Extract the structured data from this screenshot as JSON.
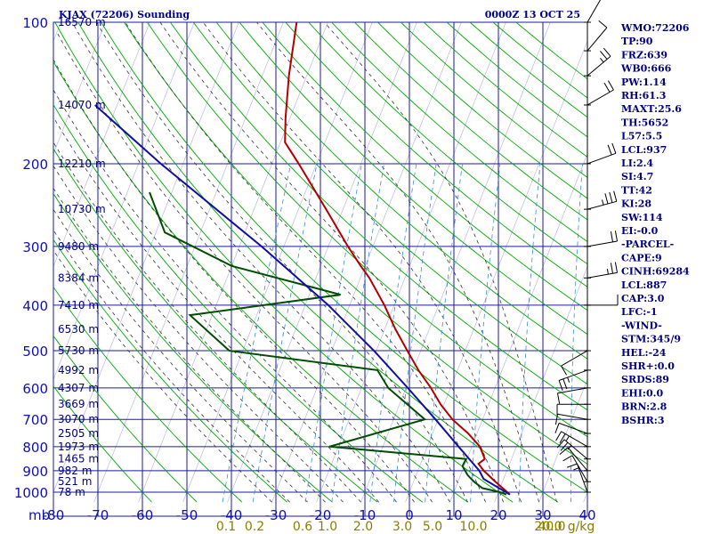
{
  "header": {
    "title": "KJAX (72206) Sounding",
    "timestamp": "0000Z 13 OCT 25"
  },
  "chart_data": {
    "type": "line",
    "title": "KJAX (72206) Sounding",
    "xlabel": "",
    "ylabel": "mb",
    "x_scale": "temperature (°C), skew-T",
    "y_scale": "log pressure (mb)",
    "xlim": [
      -80,
      40
    ],
    "ylim": [
      1000,
      100
    ],
    "pressure_ticks": [
      "100",
      "200",
      "300",
      "400",
      "500",
      "600",
      "700",
      "800",
      "900",
      "1000"
    ],
    "pressure_values": [
      100,
      200,
      300,
      400,
      500,
      600,
      700,
      800,
      900,
      1000
    ],
    "y_axis_unit": "mb",
    "temp_ticks": [
      "-80",
      "-70",
      "-60",
      "-50",
      "-40",
      "-30",
      "-20",
      "-10",
      "0",
      "10",
      "20",
      "30",
      "40"
    ],
    "temp_values": [
      -80,
      -70,
      -60,
      -50,
      -40,
      -30,
      -20,
      -10,
      0,
      10,
      20,
      30,
      40
    ],
    "height_labels": [
      {
        "label": "16570 m",
        "p": 100
      },
      {
        "label": "14070 m",
        "p": 150
      },
      {
        "label": "12210 m",
        "p": 200
      },
      {
        "label": "10730 m",
        "p": 250
      },
      {
        "label": "9480 m",
        "p": 300
      },
      {
        "label": "8384 m",
        "p": 350
      },
      {
        "label": "7410 m",
        "p": 400
      },
      {
        "label": "6530 m",
        "p": 450
      },
      {
        "label": "5730 m",
        "p": 500
      },
      {
        "label": "4992 m",
        "p": 550
      },
      {
        "label": "4307 m",
        "p": 600
      },
      {
        "label": "3669 m",
        "p": 650
      },
      {
        "label": "3070 m",
        "p": 700
      },
      {
        "label": "2505 m",
        "p": 750
      },
      {
        "label": "1973 m",
        "p": 800
      },
      {
        "label": "1465 m",
        "p": 850
      },
      {
        "label": "982 m",
        "p": 900
      },
      {
        "label": "521 m",
        "p": 950
      },
      {
        "label": "78 m",
        "p": 1000
      }
    ],
    "mixing_ratio_labels": [
      "0.1",
      "0.2",
      "0.6",
      "1.0",
      "2.0",
      "3.0",
      "5.0",
      "10.0",
      "20.0",
      "40.0",
      "g/kg"
    ],
    "series": [
      {
        "key": "temperature",
        "color": "#b00000",
        "points": [
          {
            "p": 1012,
            "t": 22.8
          },
          {
            "p": 1000,
            "t": 22.0
          },
          {
            "p": 950,
            "t": 18.4
          },
          {
            "p": 925,
            "t": 16.6
          },
          {
            "p": 900,
            "t": 14.8
          },
          {
            "p": 870,
            "t": 13.0
          },
          {
            "p": 850,
            "t": 14.0
          },
          {
            "p": 800,
            "t": 11.8
          },
          {
            "p": 750,
            "t": 8.0
          },
          {
            "p": 700,
            "t": 3.2
          },
          {
            "p": 650,
            "t": -0.8
          },
          {
            "p": 600,
            "t": -4.4
          },
          {
            "p": 550,
            "t": -8.8
          },
          {
            "p": 500,
            "t": -13.0
          },
          {
            "p": 450,
            "t": -17.6
          },
          {
            "p": 400,
            "t": -22.2
          },
          {
            "p": 350,
            "t": -28.0
          },
          {
            "p": 330,
            "t": -31.0
          },
          {
            "p": 300,
            "t": -35.6
          },
          {
            "p": 250,
            "t": -43.8
          },
          {
            "p": 200,
            "t": -54.0
          },
          {
            "p": 180,
            "t": -59.0
          },
          {
            "p": 160,
            "t": -61.0
          },
          {
            "p": 130,
            "t": -64.0
          },
          {
            "p": 100,
            "t": -67.0
          }
        ]
      },
      {
        "key": "dewpoint",
        "color": "#004d00",
        "points": [
          {
            "p": 1012,
            "t": 22.0
          },
          {
            "p": 1000,
            "t": 20.4
          },
          {
            "p": 980,
            "t": 16.0
          },
          {
            "p": 950,
            "t": 13.6
          },
          {
            "p": 920,
            "t": 11.6
          },
          {
            "p": 900,
            "t": 10.6
          },
          {
            "p": 880,
            "t": 9.6
          },
          {
            "p": 850,
            "t": 9.8
          },
          {
            "p": 800,
            "t": -22.0
          },
          {
            "p": 700,
            "t": -3.0
          },
          {
            "p": 600,
            "t": -14.0
          },
          {
            "p": 550,
            "t": -18.0
          },
          {
            "p": 500,
            "t": -53.0
          },
          {
            "p": 420,
            "t": -65.0
          },
          {
            "p": 380,
            "t": -33.0
          },
          {
            "p": 330,
            "t": -60.0
          },
          {
            "p": 280,
            "t": -78.0
          },
          {
            "p": 230,
            "t": -85.0
          }
        ]
      },
      {
        "key": "parcel",
        "color": "#1010a0",
        "points": [
          {
            "p": 1012,
            "t": 22.8
          },
          {
            "p": 937,
            "t": 15.5
          },
          {
            "p": 900,
            "t": 13.8
          },
          {
            "p": 800,
            "t": 7.0
          },
          {
            "p": 700,
            "t": -0.6
          },
          {
            "p": 600,
            "t": -9.6
          },
          {
            "p": 500,
            "t": -20.5
          },
          {
            "p": 400,
            "t": -34.8
          },
          {
            "p": 300,
            "t": -55.0
          },
          {
            "p": 200,
            "t": -85.0
          },
          {
            "p": 150,
            "t": -105.0
          }
        ]
      }
    ],
    "wind_barbs": [
      {
        "p": 1000,
        "dir": 20,
        "spd": 5
      },
      {
        "p": 950,
        "dir": 30,
        "spd": 10
      },
      {
        "p": 900,
        "dir": 40,
        "spd": 10
      },
      {
        "p": 850,
        "dir": 50,
        "spd": 15
      },
      {
        "p": 800,
        "dir": 60,
        "spd": 15
      },
      {
        "p": 750,
        "dir": 70,
        "spd": 10
      },
      {
        "p": 700,
        "dir": 80,
        "spd": 10
      },
      {
        "p": 650,
        "dir": 90,
        "spd": 10
      },
      {
        "p": 600,
        "dir": 100,
        "spd": 10
      },
      {
        "p": 550,
        "dir": 110,
        "spd": 15
      },
      {
        "p": 500,
        "dir": 120,
        "spd": 10
      },
      {
        "p": 400,
        "dir": 270,
        "spd": 10
      },
      {
        "p": 350,
        "dir": 280,
        "spd": 15
      },
      {
        "p": 300,
        "dir": 280,
        "spd": 20
      },
      {
        "p": 250,
        "dir": 285,
        "spd": 25
      },
      {
        "p": 200,
        "dir": 290,
        "spd": 20
      },
      {
        "p": 150,
        "dir": 300,
        "spd": 20
      },
      {
        "p": 130,
        "dir": 310,
        "spd": 15
      },
      {
        "p": 115,
        "dir": 320,
        "spd": 10
      },
      {
        "p": 100,
        "dir": 330,
        "spd": 10
      }
    ]
  },
  "indices": [
    "WMO:72206",
    "TP:90",
    "FRZ:639",
    "WB0:666",
    "PW:1.14",
    "RH:61.3",
    "MAXT:25.6",
    "TH:5652",
    "L57:5.5",
    "LCL:937",
    "LI:2.4",
    "SI:4.7",
    "TT:42",
    "KI:28",
    "SW:114",
    "EI:-0.0",
    "-PARCEL-",
    "CAPE:9",
    "CINH:69284",
    "LCL:887",
    "CAP:3.0",
    "LFC:-1",
    "-WIND-",
    "STM:345/9",
    "HEL:-24",
    "SHR+:0.0",
    "SRDS:89",
    "EHI:0.0",
    "BRN:2.8",
    "BSHR:3"
  ],
  "colors": {
    "grid_blue": "#1a1aa0",
    "dry_adiabat": "#00aa00",
    "moist_adiabat": "#333333",
    "mixing_ratio": "#3a8fd0",
    "temperature": "#b00000",
    "dewpoint": "#004d00",
    "parcel": "#1010a0"
  }
}
